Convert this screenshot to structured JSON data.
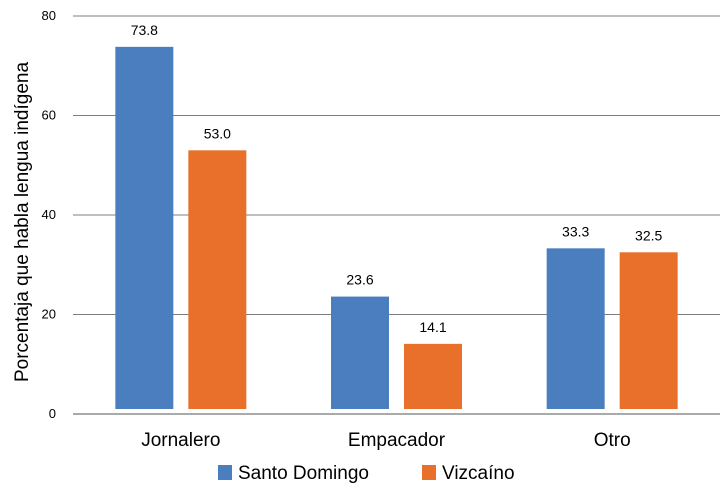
{
  "chart_data": {
    "type": "bar",
    "title": "",
    "xlabel": "",
    "ylabel": "Porcentaja que habla lengua indígena",
    "ylim": [
      0,
      80
    ],
    "yticks": [
      0,
      20,
      40,
      60,
      80
    ],
    "grid": true,
    "legend_position": "bottom",
    "categories": [
      "Jornalero",
      "Empacador",
      "Otro"
    ],
    "series": [
      {
        "name": "Santo Domingo",
        "color": "#4a7ebf",
        "values": [
          73.8,
          23.6,
          33.3
        ],
        "labels": [
          "73.8",
          "23.6",
          "33.3"
        ]
      },
      {
        "name": "Vizcaíno",
        "color": "#e8702a",
        "values": [
          53.0,
          14.1,
          32.5
        ],
        "labels": [
          "53.0",
          "14.1",
          "32.5"
        ]
      }
    ]
  }
}
